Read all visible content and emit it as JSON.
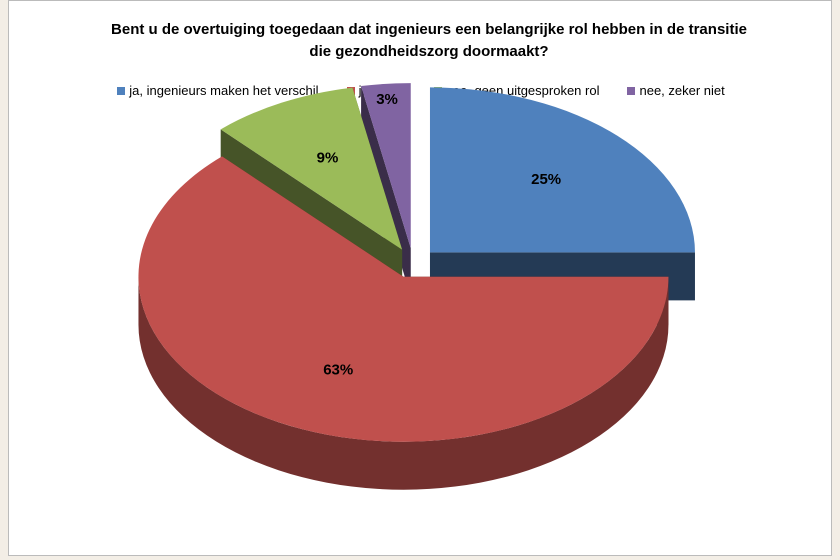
{
  "chart_data": {
    "type": "pie3d",
    "title": "Bent u de overtuiging toegedaan dat ingenieurs een belangrijke rol hebben in de transitie die gezondheidszorg doormaakt?",
    "categories": [
      "ja, ingenieurs maken het verschil",
      "ja, maar",
      "nee, geen uitgesproken rol",
      "nee, zeker niet"
    ],
    "values": [
      25,
      63,
      9,
      3
    ],
    "value_labels": [
      "25%",
      "63%",
      "9%",
      "3%"
    ],
    "colors": [
      "#4f81bd",
      "#c0504d",
      "#9bbb59",
      "#8064a2"
    ],
    "legend": "top"
  }
}
